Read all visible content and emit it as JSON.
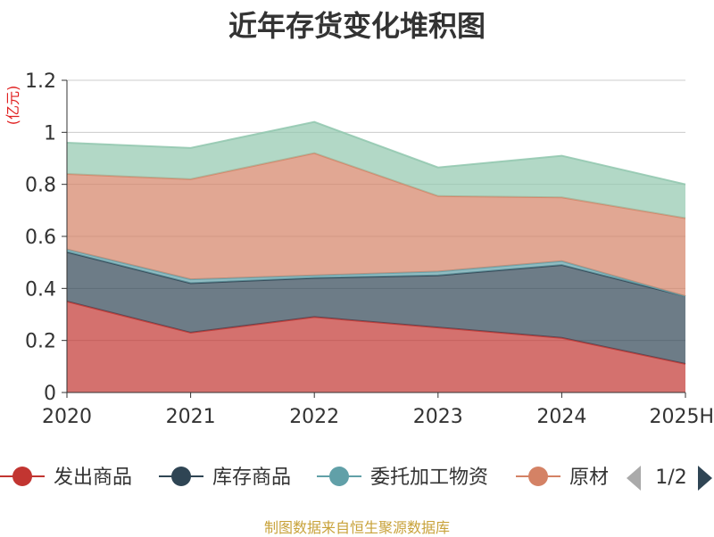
{
  "chart_data": {
    "type": "area",
    "stacked": true,
    "title": "近年存货变化堆积图",
    "ylabel": "(亿元)",
    "xlabel": "",
    "categories": [
      "2020",
      "2021",
      "2022",
      "2023",
      "2024",
      "2025H"
    ],
    "ylim": [
      0,
      1.2
    ],
    "yticks": [
      "0",
      "0.2",
      "0.4",
      "0.6",
      "0.8",
      "1",
      "1.2"
    ],
    "grid": true,
    "legend_position": "bottom",
    "series": [
      {
        "name": "发出商品",
        "color": "#c23531",
        "values": [
          0.35,
          0.23,
          0.29,
          0.25,
          0.21,
          0.11
        ]
      },
      {
        "name": "库存商品",
        "color": "#2f4554",
        "values": [
          0.19,
          0.19,
          0.15,
          0.2,
          0.28,
          0.26
        ]
      },
      {
        "name": "委托加工物资",
        "color": "#61a0a8",
        "values": [
          0.01,
          0.015,
          0.01,
          0.015,
          0.015,
          0.0
        ]
      },
      {
        "name": "原材料",
        "color": "#d48265",
        "values": [
          0.29,
          0.385,
          0.47,
          0.29,
          0.245,
          0.3
        ]
      },
      {
        "name": "",
        "color": "#91c7ae",
        "values": [
          0.12,
          0.12,
          0.12,
          0.11,
          0.16,
          0.13
        ]
      }
    ],
    "legend_visible": [
      "发出商品",
      "库存商品",
      "委托加工物资",
      "原材"
    ],
    "legend_page": "1/2"
  },
  "source": "制图数据来自恒生聚源数据库",
  "icons": {
    "prev": "arrow-left-icon",
    "next": "arrow-right-icon"
  }
}
